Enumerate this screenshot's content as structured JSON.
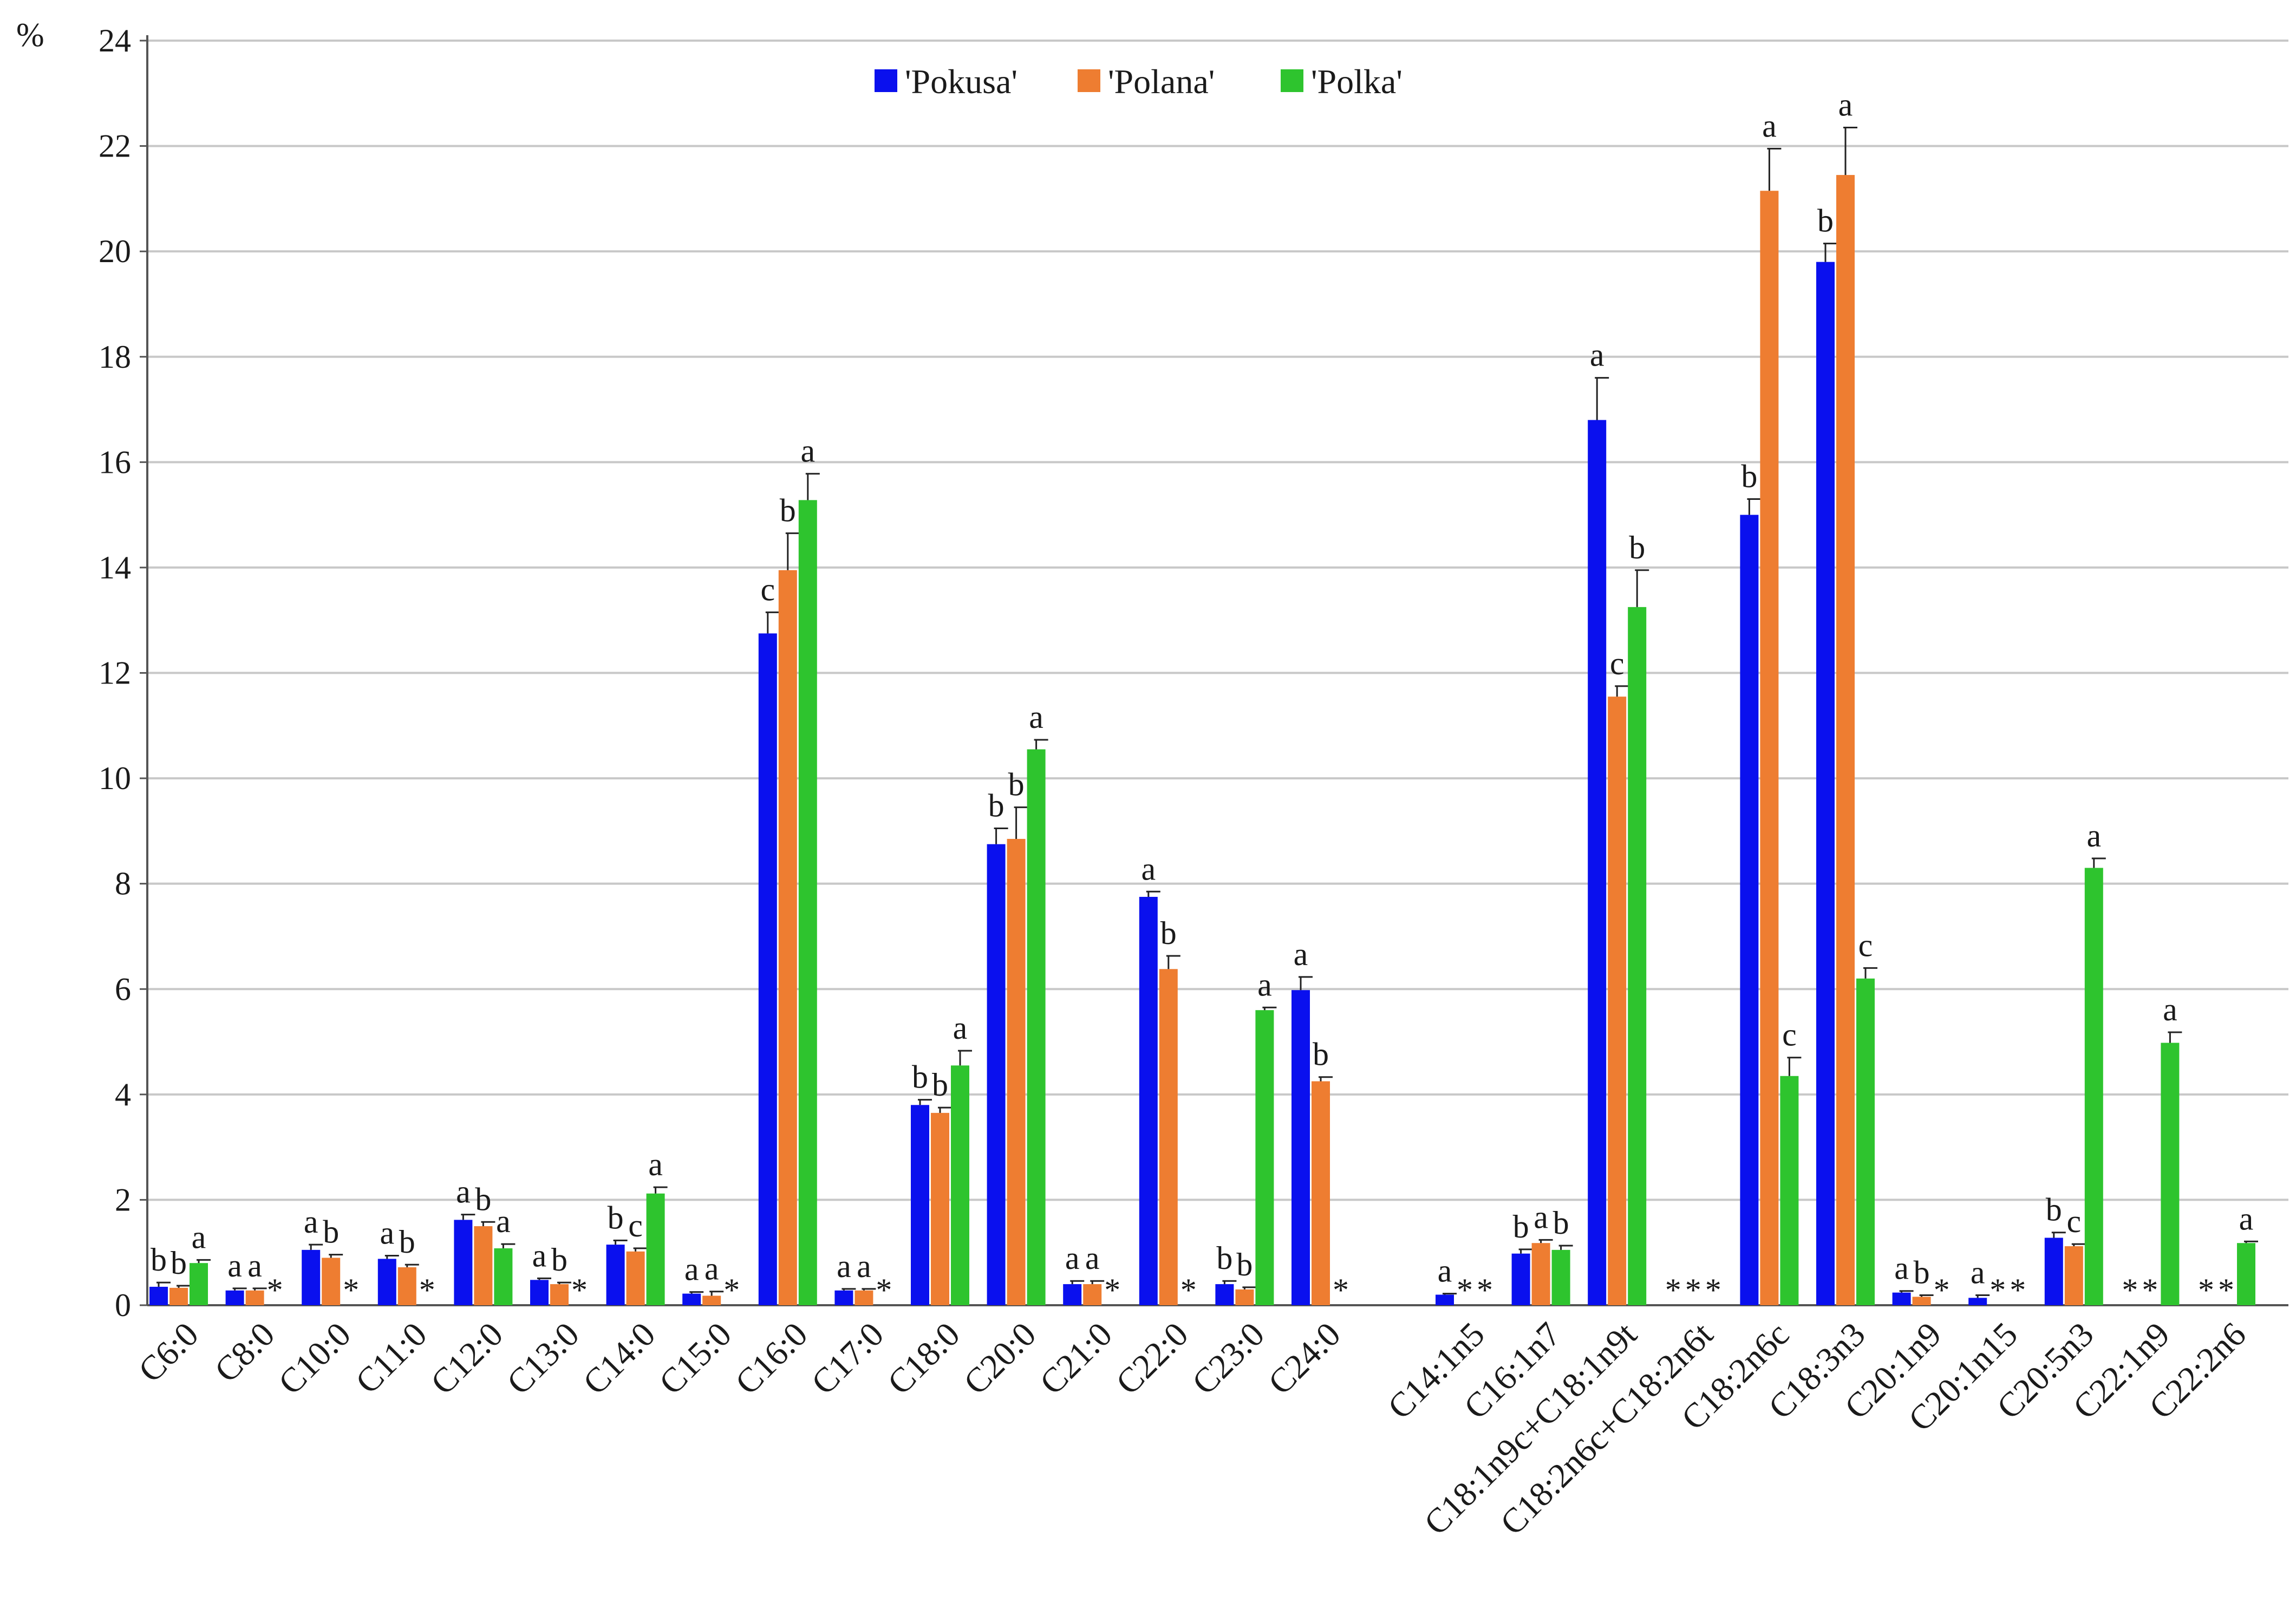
{
  "chart_data": {
    "type": "bar",
    "ylabel": "%",
    "ylim": [
      0,
      24
    ],
    "yticks": [
      0,
      2,
      4,
      6,
      8,
      10,
      12,
      14,
      16,
      18,
      20,
      22,
      24
    ],
    "grid": true,
    "legend_position": "top-center",
    "colors": [
      "#0a10ee",
      "#ee7d31",
      "#2ec42e"
    ],
    "categories": [
      "C6:0",
      "C8:0",
      "C10:0",
      "C11:0",
      "C12:0",
      "C13:0",
      "C14:0",
      "C15:0",
      "C16:0",
      "C17:0",
      "C18:0",
      "C20:0",
      "C21:0",
      "C22:0",
      "C23:0",
      "C24:0",
      "C14:1n5",
      "C16:1n7",
      "C18:1n9c+C18:1n9t",
      "C18:2n6c+C18:2n6t",
      "C18:2n6c",
      "C18:3n3",
      "C20:1n9",
      "C20:1n15",
      "C20:5n3",
      "C22:1n9",
      "C22:2n6"
    ],
    "series": [
      {
        "name": "'Pokusa'",
        "values": [
          0.35,
          0.28,
          1.05,
          0.88,
          1.62,
          0.48,
          1.15,
          0.22,
          12.75,
          0.28,
          3.8,
          8.75,
          0.4,
          7.75,
          0.4,
          5.98,
          0.2,
          0.98,
          16.8,
          null,
          15.0,
          19.8,
          0.24,
          0.14,
          1.28,
          null,
          null
        ],
        "errors": [
          0.08,
          0.04,
          0.1,
          0.06,
          0.1,
          0.03,
          0.08,
          0.03,
          0.4,
          0.03,
          0.1,
          0.3,
          0.06,
          0.1,
          0.06,
          0.25,
          0.02,
          0.08,
          0.8,
          null,
          0.3,
          0.35,
          0.03,
          0.05,
          0.1,
          null,
          null
        ],
        "letters": [
          "b",
          "a",
          "a",
          "a",
          "a",
          "a",
          "b",
          "a",
          "c",
          "a",
          "b",
          "b",
          "a",
          "a",
          "b",
          "a",
          "a",
          "b",
          "a",
          "",
          "b",
          "b",
          "a",
          "a",
          "b",
          "",
          ""
        ]
      },
      {
        "name": "'Polana'",
        "values": [
          0.33,
          0.28,
          0.9,
          0.72,
          1.5,
          0.4,
          1.02,
          0.18,
          13.95,
          0.28,
          3.65,
          8.85,
          0.4,
          6.38,
          0.3,
          4.25,
          null,
          1.18,
          11.55,
          null,
          21.15,
          21.45,
          0.16,
          null,
          1.12,
          null,
          null
        ],
        "errors": [
          0.04,
          0.04,
          0.06,
          0.05,
          0.08,
          0.03,
          0.06,
          0.08,
          0.7,
          0.03,
          0.1,
          0.6,
          0.06,
          0.25,
          0.04,
          0.08,
          null,
          0.06,
          0.2,
          null,
          0.8,
          0.9,
          0.03,
          null,
          0.04,
          null,
          null
        ],
        "letters": [
          "b",
          "a",
          "b",
          "b",
          "b",
          "b",
          "c",
          "a",
          "b",
          "a",
          "b",
          "b",
          "a",
          "b",
          "b",
          "b",
          "",
          "a",
          "c",
          "",
          "a",
          "a",
          "b",
          "",
          "c",
          "",
          ""
        ]
      },
      {
        "name": "'Polka'",
        "values": [
          0.8,
          null,
          null,
          null,
          1.08,
          null,
          2.12,
          null,
          15.28,
          null,
          4.55,
          10.55,
          null,
          null,
          5.6,
          null,
          null,
          1.05,
          13.25,
          null,
          4.35,
          6.2,
          null,
          null,
          8.3,
          4.98,
          1.18
        ],
        "errors": [
          0.06,
          null,
          null,
          null,
          0.08,
          null,
          0.12,
          null,
          0.5,
          null,
          0.28,
          0.18,
          null,
          null,
          0.05,
          null,
          null,
          0.08,
          0.7,
          null,
          0.35,
          0.2,
          null,
          null,
          0.18,
          0.2,
          0.03
        ],
        "letters": [
          "a",
          "",
          "",
          "",
          "a",
          "",
          "a",
          "",
          "a",
          "",
          "a",
          "a",
          "",
          "",
          "a",
          "",
          "",
          "b",
          "b",
          "",
          "c",
          "c",
          "",
          "",
          "a",
          "a",
          "a"
        ]
      }
    ],
    "not_detected_marker": "*"
  }
}
